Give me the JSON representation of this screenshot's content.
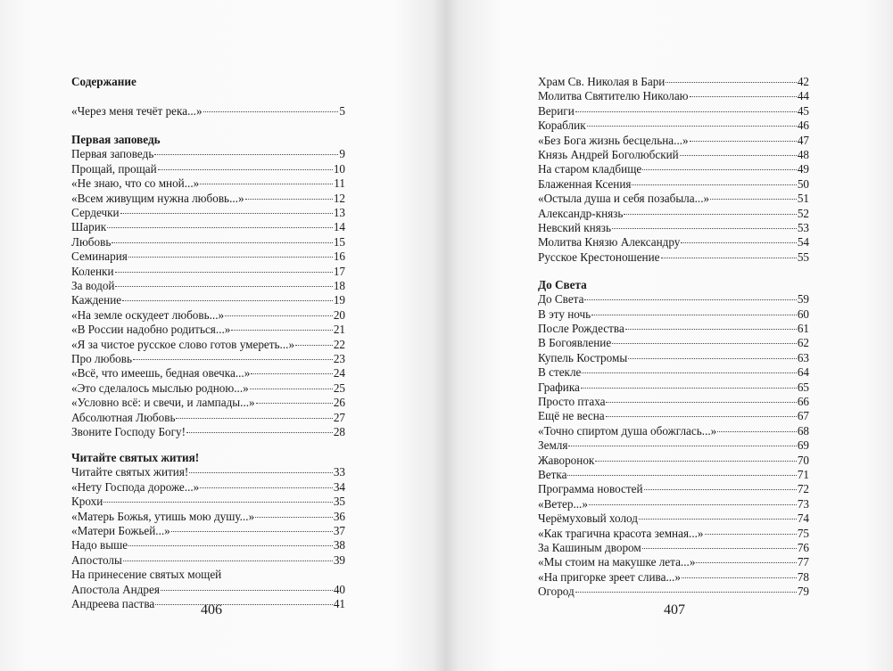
{
  "left_page": {
    "heading": "Содержание",
    "intro": [
      {
        "title": "«Через меня течёт река...»",
        "page": 5
      }
    ],
    "sections": [
      {
        "title": "Первая заповедь",
        "entries": [
          {
            "title": "Первая заповедь",
            "page": 9
          },
          {
            "title": "Прощай, прощай",
            "page": 10
          },
          {
            "title": "«Не знаю, что со мной...»",
            "page": 11
          },
          {
            "title": "«Всем живущим нужна любовь...»",
            "page": 12
          },
          {
            "title": "Сердечки",
            "page": 13
          },
          {
            "title": "Шарик",
            "page": 14
          },
          {
            "title": "Любовь",
            "page": 15
          },
          {
            "title": "Семинария",
            "page": 16
          },
          {
            "title": "Коленки",
            "page": 17
          },
          {
            "title": "За водой",
            "page": 18
          },
          {
            "title": "Каждение",
            "page": 19
          },
          {
            "title": "«На земле оскудеет любовь...»",
            "page": 20
          },
          {
            "title": "«В России надобно родиться...»",
            "page": 21
          },
          {
            "title": "«Я за чистое русское слово готов умереть...»",
            "page": 22
          },
          {
            "title": "Про любовь",
            "page": 23
          },
          {
            "title": "«Всё, что имеешь, бедная овечка...»",
            "page": 24
          },
          {
            "title": "«Это сделалось мыслью родною...»",
            "page": 25
          },
          {
            "title": "«Условно всё: и свечи, и лампады...»",
            "page": 26
          },
          {
            "title": "Абсолютная Любовь",
            "page": 27
          },
          {
            "title": "Звоните Господу Богу!",
            "page": 28
          }
        ]
      },
      {
        "title": "Читайте святых жития!",
        "entries": [
          {
            "title": "Читайте святых жития!",
            "page": 33
          },
          {
            "title": "«Нету Господа дороже...»",
            "page": 34
          },
          {
            "title": "Крохи",
            "page": 35
          },
          {
            "title": "«Матерь Божья, утишь мою душу...»",
            "page": 36
          },
          {
            "title": "«Матери Божьей...»",
            "page": 37
          },
          {
            "title": "Надо выше",
            "page": 38
          },
          {
            "title": "Апостолы",
            "page": 39
          },
          {
            "title_lines": [
              "На принесение святых мощей",
              "Апостола Андрея"
            ],
            "page": 40
          },
          {
            "title": "Андреева паства",
            "page": 41
          }
        ]
      }
    ],
    "page_number": 406
  },
  "right_page": {
    "continued_entries": [
      {
        "title": "Храм Св. Николая в Бари",
        "page": 42
      },
      {
        "title": "Молитва Святителю Николаю",
        "page": 44
      },
      {
        "title": "Вериги",
        "page": 45
      },
      {
        "title": "Кораблик",
        "page": 46
      },
      {
        "title": "«Без Бога жизнь бесцельна...»",
        "page": 47
      },
      {
        "title": "Князь Андрей Боголюбский",
        "page": 48
      },
      {
        "title": "На старом кладбище",
        "page": 49
      },
      {
        "title": "Блаженная Ксения",
        "page": 50
      },
      {
        "title": "«Остыла душа и себя позабыла...»",
        "page": 51
      },
      {
        "title": "Александр-князь",
        "page": 52
      },
      {
        "title": "Невский князь",
        "page": 53
      },
      {
        "title": "Молитва Князю Александру",
        "page": 54
      },
      {
        "title": "Русское Крестоношение",
        "page": 55
      }
    ],
    "sections": [
      {
        "title": "До Света",
        "entries": [
          {
            "title": "До Света",
            "page": 59
          },
          {
            "title": "В эту ночь",
            "page": 60
          },
          {
            "title": "После Рождества",
            "page": 61
          },
          {
            "title": "В Богоявление",
            "page": 62
          },
          {
            "title": "Купель Костромы",
            "page": 63
          },
          {
            "title": "В стекле",
            "page": 64
          },
          {
            "title": "Графика",
            "page": 65
          },
          {
            "title": "Просто птаха",
            "page": 66
          },
          {
            "title": "Ещё не весна",
            "page": 67
          },
          {
            "title": "«Точно спиртом душа обожглась...»",
            "page": 68
          },
          {
            "title": "Земля",
            "page": 69
          },
          {
            "title": "Жаворонок",
            "page": 70
          },
          {
            "title": "Ветка",
            "page": 71
          },
          {
            "title": "Программа новостей",
            "page": 72
          },
          {
            "title": "«Ветер...»",
            "page": 73
          },
          {
            "title": "Черёмуховый холод",
            "page": 74
          },
          {
            "title": "«Как трагична красота земная...»",
            "page": 75
          },
          {
            "title": "За Кашиным двором",
            "page": 76
          },
          {
            "title": "«Мы стоим на макушке лета...»",
            "page": 77
          },
          {
            "title": "«На пригорке зреет слива...»",
            "page": 78
          },
          {
            "title": "Огород",
            "page": 79
          }
        ]
      }
    ],
    "page_number": 407
  }
}
